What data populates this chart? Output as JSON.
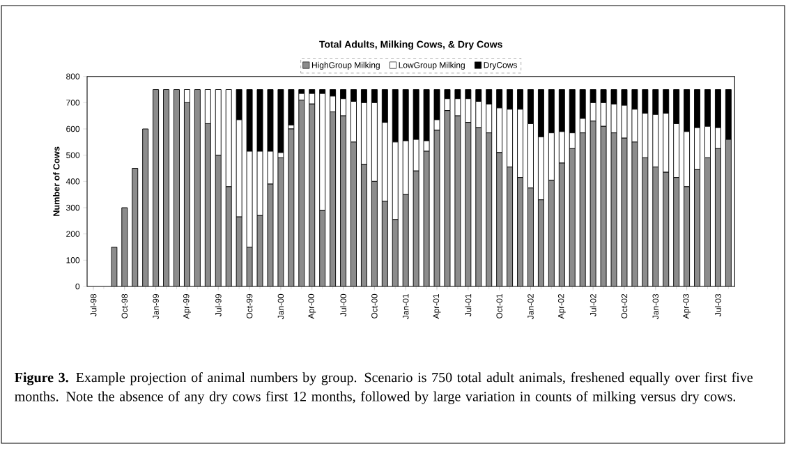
{
  "chart_data": {
    "type": "bar",
    "stacked": true,
    "title": "Total Adults, Milking Cows, & Dry Cows",
    "ylabel": "Number of Cows",
    "categories": [
      "Jul-98",
      null,
      null,
      "Oct-98",
      null,
      null,
      "Jan-99",
      null,
      null,
      "Apr-99",
      null,
      null,
      "Jul-99",
      null,
      null,
      "Oct-99",
      null,
      null,
      "Jan-00",
      null,
      null,
      "Apr-00",
      null,
      null,
      "Jul-00",
      null,
      null,
      "Oct-00",
      null,
      null,
      "Jan-01",
      null,
      null,
      "Apr-01",
      null,
      null,
      "Jul-01",
      null,
      null,
      "Oct-01",
      null,
      null,
      "Jan-02",
      null,
      null,
      "Apr-02",
      null,
      null,
      "Jul-02",
      null,
      null,
      "Oct-02",
      null,
      null,
      "Jan-03",
      null,
      null,
      "Apr-03",
      null,
      null,
      "Jul-03",
      null
    ],
    "series": [
      {
        "name": "HighGroup Milking",
        "color": "#8c8c8c",
        "values": [
          0,
          0,
          150,
          300,
          450,
          600,
          750,
          750,
          750,
          700,
          750,
          620,
          500,
          380,
          265,
          150,
          270,
          390,
          490,
          600,
          710,
          695,
          290,
          665,
          650,
          550,
          465,
          400,
          325,
          255,
          350,
          440,
          515,
          595,
          670,
          650,
          625,
          605,
          585,
          510,
          455,
          415,
          375,
          330,
          405,
          470,
          525,
          585,
          630,
          610,
          585,
          565,
          550,
          490,
          455,
          435,
          415,
          380,
          445,
          490,
          525,
          560
        ]
      },
      {
        "name": "LowGroup Milking",
        "color": "#ffffff",
        "values": [
          0,
          0,
          0,
          0,
          0,
          0,
          0,
          0,
          0,
          50,
          0,
          130,
          250,
          370,
          370,
          365,
          245,
          125,
          20,
          15,
          25,
          40,
          445,
          60,
          65,
          155,
          235,
          300,
          300,
          295,
          205,
          120,
          40,
          40,
          45,
          65,
          90,
          100,
          110,
          170,
          220,
          260,
          245,
          240,
          180,
          120,
          60,
          55,
          70,
          90,
          110,
          125,
          125,
          170,
          200,
          225,
          205,
          210,
          160,
          120,
          80,
          0
        ]
      },
      {
        "name": "DryCows",
        "color": "#000000",
        "values": [
          0,
          0,
          0,
          0,
          0,
          0,
          0,
          0,
          0,
          0,
          0,
          0,
          0,
          0,
          115,
          235,
          235,
          235,
          240,
          135,
          15,
          15,
          15,
          25,
          35,
          45,
          50,
          50,
          125,
          200,
          195,
          190,
          195,
          115,
          35,
          35,
          35,
          45,
          55,
          70,
          75,
          75,
          130,
          180,
          165,
          160,
          165,
          110,
          50,
          50,
          55,
          60,
          75,
          90,
          95,
          90,
          130,
          160,
          145,
          140,
          145,
          190
        ]
      }
    ],
    "ylim": [
      0,
      800
    ],
    "yticks": [
      0,
      100,
      200,
      300,
      400,
      500,
      600,
      700,
      800
    ],
    "legend": "top",
    "annotations": [
      "**Figure 3.** Example projection of animal numbers by group. Scenario is 750 total adult animals, freshened equally over first five months. Note the absence of any dry cows first 12 months, followed by large variation in counts of milking versus dry cows."
    ]
  }
}
